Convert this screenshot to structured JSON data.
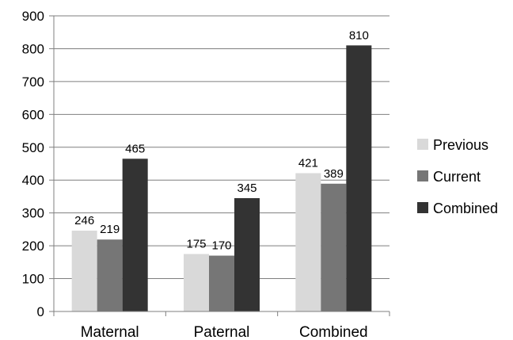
{
  "chart_data": {
    "type": "bar",
    "title": "",
    "xlabel": "",
    "ylabel": "",
    "categories": [
      "Maternal",
      "Paternal",
      "Combined"
    ],
    "series": [
      {
        "name": "Previous",
        "values": [
          246,
          175,
          421
        ],
        "color": "#d9d9d9"
      },
      {
        "name": "Current",
        "values": [
          219,
          170,
          389
        ],
        "color": "#767676"
      },
      {
        "name": "Combined",
        "values": [
          465,
          345,
          810
        ],
        "color": "#333333"
      }
    ],
    "ylim": [
      0,
      900
    ],
    "yticks": [
      0,
      100,
      200,
      300,
      400,
      500,
      600,
      700,
      800,
      900
    ],
    "grid": true,
    "legend_position": "right",
    "data_labels": true
  }
}
